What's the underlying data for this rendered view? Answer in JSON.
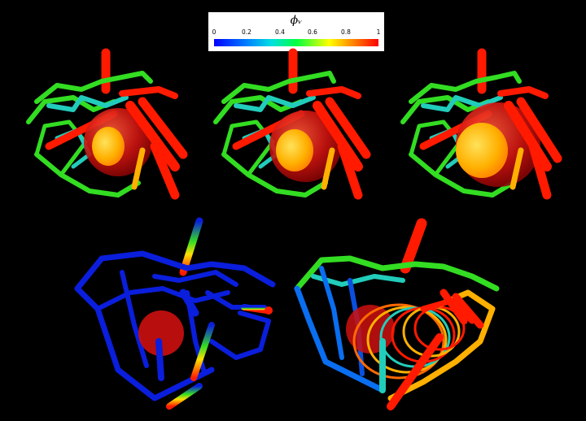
{
  "colorbar": {
    "title": "ϕᵥ",
    "ticks": [
      "0",
      "0.2",
      "0.4",
      "0.6",
      "0.8",
      "1"
    ],
    "min": 0,
    "max": 1
  },
  "colors": {
    "background": "#000000",
    "red": "#ff1a00",
    "green": "#33dd22",
    "cyan": "#22ccbb",
    "blue": "#0a1edc",
    "orange": "#ffb000",
    "bubble": "#cc1010"
  }
}
